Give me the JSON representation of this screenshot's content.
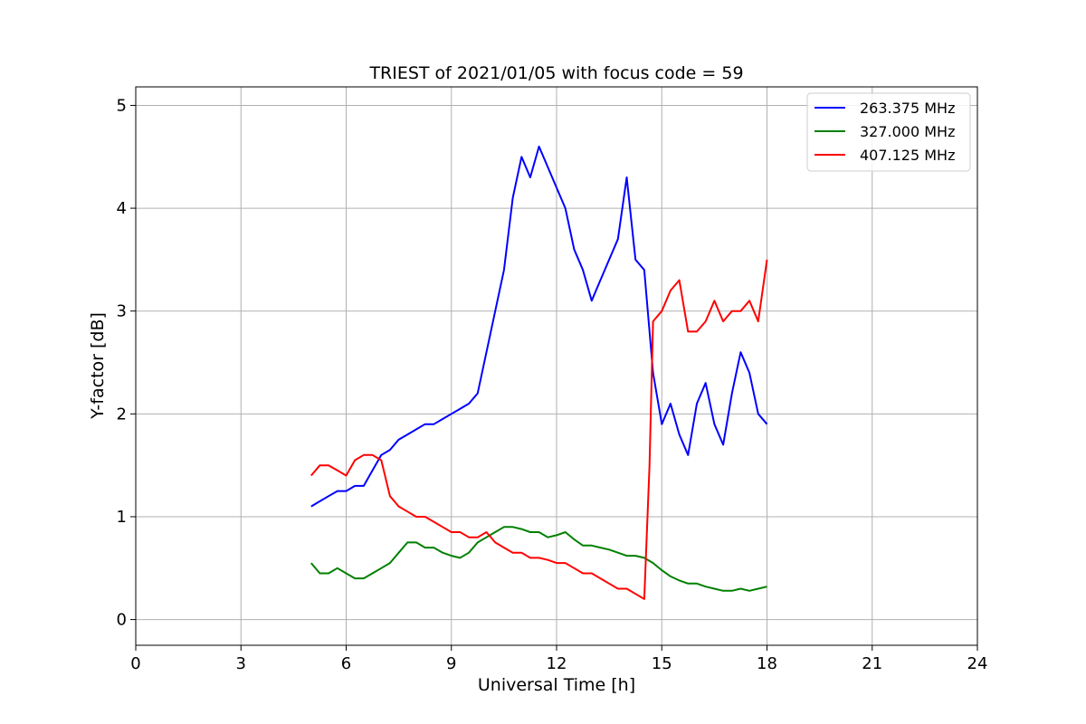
{
  "chart_data": {
    "type": "line",
    "title": "TRIEST of 2021/01/05 with focus code = 59",
    "xlabel": "Universal Time [h]",
    "ylabel": "Y-factor [dB]",
    "xlim": [
      0,
      24
    ],
    "ylim": [
      -0.25,
      5.18
    ],
    "xticks": [
      0,
      3,
      6,
      9,
      12,
      15,
      18,
      21,
      24
    ],
    "yticks": [
      0,
      1,
      2,
      3,
      4,
      5
    ],
    "grid": true,
    "legend_position": "top-right",
    "series": [
      {
        "name": "263.375 MHz",
        "color": "#0000ff",
        "x": [
          5.0,
          5.25,
          5.5,
          5.75,
          6.0,
          6.25,
          6.5,
          6.75,
          7.0,
          7.25,
          7.5,
          7.75,
          8.0,
          8.25,
          8.5,
          8.75,
          9.0,
          9.25,
          9.5,
          9.75,
          10.0,
          10.25,
          10.5,
          10.75,
          11.0,
          11.25,
          11.5,
          11.75,
          12.0,
          12.25,
          12.5,
          12.75,
          13.0,
          13.25,
          13.5,
          13.75,
          14.0,
          14.25,
          14.5,
          14.75,
          15.0,
          15.25,
          15.5,
          15.75,
          16.0,
          16.25,
          16.5,
          16.75,
          17.0,
          17.25,
          17.5,
          17.75,
          18.0
        ],
        "y": [
          1.1,
          1.15,
          1.2,
          1.25,
          1.25,
          1.3,
          1.3,
          1.45,
          1.6,
          1.65,
          1.75,
          1.8,
          1.85,
          1.9,
          1.9,
          1.95,
          2.0,
          2.05,
          2.1,
          2.2,
          2.6,
          3.0,
          3.4,
          4.1,
          4.5,
          4.3,
          4.6,
          4.4,
          4.2,
          4.0,
          3.6,
          3.4,
          3.1,
          3.3,
          3.5,
          3.7,
          4.3,
          3.5,
          3.4,
          2.4,
          1.9,
          2.1,
          1.8,
          1.6,
          2.1,
          2.3,
          1.9,
          1.7,
          2.2,
          2.6,
          2.4,
          2.0,
          1.9
        ]
      },
      {
        "name": "327.000 MHz",
        "color": "#008000",
        "x": [
          5.0,
          5.25,
          5.5,
          5.75,
          6.0,
          6.25,
          6.5,
          6.75,
          7.0,
          7.25,
          7.5,
          7.75,
          8.0,
          8.25,
          8.5,
          8.75,
          9.0,
          9.25,
          9.5,
          9.75,
          10.0,
          10.25,
          10.5,
          10.75,
          11.0,
          11.25,
          11.5,
          11.75,
          12.0,
          12.25,
          12.5,
          12.75,
          13.0,
          13.25,
          13.5,
          13.75,
          14.0,
          14.25,
          14.5,
          14.75,
          15.0,
          15.25,
          15.5,
          15.75,
          16.0,
          16.25,
          16.5,
          16.75,
          17.0,
          17.25,
          17.5,
          17.75,
          18.0
        ],
        "y": [
          0.55,
          0.45,
          0.45,
          0.5,
          0.45,
          0.4,
          0.4,
          0.45,
          0.5,
          0.55,
          0.65,
          0.75,
          0.75,
          0.7,
          0.7,
          0.65,
          0.62,
          0.6,
          0.65,
          0.75,
          0.8,
          0.85,
          0.9,
          0.9,
          0.88,
          0.85,
          0.85,
          0.8,
          0.82,
          0.85,
          0.78,
          0.72,
          0.72,
          0.7,
          0.68,
          0.65,
          0.62,
          0.62,
          0.6,
          0.55,
          0.48,
          0.42,
          0.38,
          0.35,
          0.35,
          0.32,
          0.3,
          0.28,
          0.28,
          0.3,
          0.28,
          0.3,
          0.32
        ]
      },
      {
        "name": "407.125 MHz",
        "color": "#ff0000",
        "x": [
          5.0,
          5.25,
          5.5,
          5.75,
          6.0,
          6.25,
          6.5,
          6.75,
          7.0,
          7.25,
          7.5,
          7.75,
          8.0,
          8.25,
          8.5,
          8.75,
          9.0,
          9.25,
          9.5,
          9.75,
          10.0,
          10.25,
          10.5,
          10.75,
          11.0,
          11.25,
          11.5,
          11.75,
          12.0,
          12.25,
          12.5,
          12.75,
          13.0,
          13.25,
          13.5,
          13.75,
          14.0,
          14.25,
          14.5,
          14.65,
          14.75,
          15.0,
          15.25,
          15.5,
          15.75,
          16.0,
          16.25,
          16.5,
          16.75,
          17.0,
          17.25,
          17.5,
          17.75,
          18.0
        ],
        "y": [
          1.4,
          1.5,
          1.5,
          1.45,
          1.4,
          1.55,
          1.6,
          1.6,
          1.55,
          1.2,
          1.1,
          1.05,
          1.0,
          1.0,
          0.95,
          0.9,
          0.85,
          0.85,
          0.8,
          0.8,
          0.85,
          0.75,
          0.7,
          0.65,
          0.65,
          0.6,
          0.6,
          0.58,
          0.55,
          0.55,
          0.5,
          0.45,
          0.45,
          0.4,
          0.35,
          0.3,
          0.3,
          0.25,
          0.2,
          1.5,
          2.9,
          3.0,
          3.2,
          3.3,
          2.8,
          2.8,
          2.9,
          3.1,
          2.9,
          3.0,
          3.0,
          3.1,
          2.9,
          3.5
        ]
      }
    ]
  }
}
